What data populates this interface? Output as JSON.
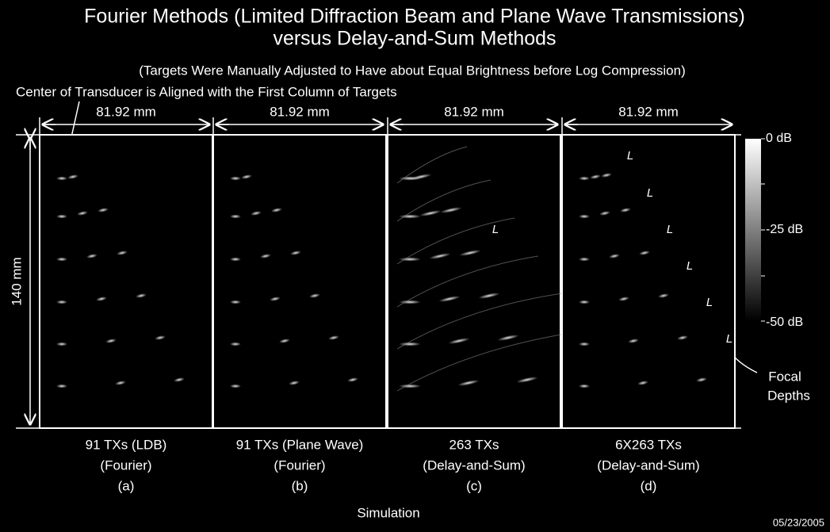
{
  "header": {
    "title_line1": "Fourier Methods (Limited Diffraction Beam and Plane Wave Transmissions)",
    "title_line2": "versus Delay-and-Sum Methods",
    "subtitle": "(Targets Were Manually Adjusted to Have about Equal Brightness before Log Compression)"
  },
  "transducer_note": "Center of Transducer is Aligned with the First Column of Targets",
  "depth_label": "140 mm",
  "panels": [
    {
      "width_label": "81.92 mm",
      "labels": [
        "91 TXs (LDB)",
        "(Fourier)",
        "(a)"
      ],
      "focal_labels": []
    },
    {
      "width_label": "81.92 mm",
      "labels": [
        "91 TXs (Plane Wave)",
        "(Fourier)",
        "(b)"
      ],
      "focal_labels": []
    },
    {
      "width_label": "81.92 mm",
      "labels": [
        "263 TXs",
        "(Delay-and-Sum)",
        "(c)"
      ],
      "focal_labels": [
        "L"
      ]
    },
    {
      "width_label": "81.92 mm",
      "labels": [
        "6X263 TXs",
        "(Delay-and-Sum)",
        "(d)"
      ],
      "focal_labels": [
        "L",
        "L",
        "L",
        "L",
        "L",
        "L"
      ]
    }
  ],
  "colorbar": {
    "labels": [
      "0 dB",
      "-25 dB",
      "-50 dB"
    ]
  },
  "focal_note": [
    "Focal",
    "Depths"
  ],
  "footer": {
    "caption": "Simulation",
    "date": "05/23/2005"
  }
}
